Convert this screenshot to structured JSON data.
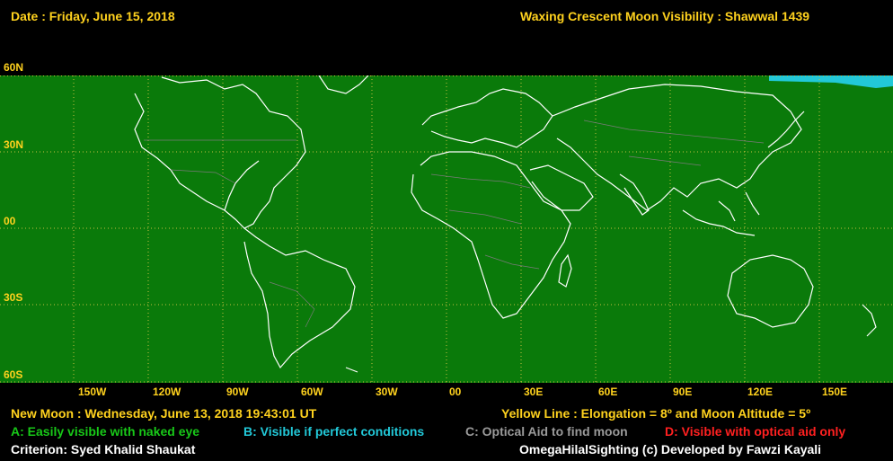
{
  "header": {
    "date": "Date : Friday, June 15, 2018",
    "title": "Waxing Crescent Moon Visibility : Shawwal 1439"
  },
  "latitude_labels": [
    "60N",
    "30N",
    "00",
    "30S",
    "60S"
  ],
  "longitude_labels": [
    "150W",
    "120W",
    "90W",
    "60W",
    "30W",
    "00",
    "30E",
    "60E",
    "90E",
    "120E",
    "150E"
  ],
  "footer": {
    "new_moon": "New Moon : Wednesday, June 13, 2018  19:43:01  UT",
    "yellow_line": "Yellow Line : Elongation = 8º and Moon Altitude = 5º",
    "legend_a": "A: Easily visible with naked eye",
    "legend_b": "B: Visible if perfect conditions",
    "legend_c": "C: Optical Aid to find moon",
    "legend_d": "D: Visible with optical aid only",
    "criterion": "Criterion: Syed Khalid Shaukat",
    "credit": "OmegaHilalSighting  (c)  Developed by Fawzi Kayali"
  },
  "colors": {
    "visible_a": "#0a7a0a",
    "visible_b": "#22c8d8",
    "coast": "#ffffff",
    "grid": "#c8c040",
    "text": "#ffd21e"
  },
  "visibility_zones": {
    "zone_a_lat_range": [
      -60,
      60
    ],
    "zone_b_region": "north-east pacific strip"
  }
}
